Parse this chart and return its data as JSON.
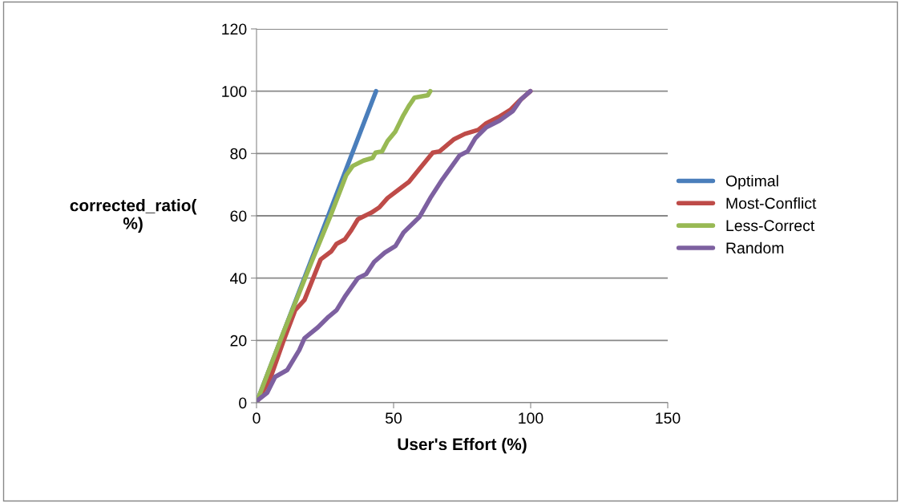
{
  "chart_data": {
    "type": "line",
    "xlabel": "User's Effort (%)",
    "ylabel": "corrected_ratio(\n%)",
    "xlim": [
      0,
      150
    ],
    "xticks": [
      0,
      50,
      100,
      150
    ],
    "ylim": [
      0,
      120
    ],
    "yticks": [
      0,
      20,
      40,
      60,
      80,
      100,
      120
    ],
    "grid": "y",
    "legend": "right",
    "marker": "none",
    "line_style": "solid",
    "series": [
      {
        "name": "Optimal",
        "color": "#4a7ebb",
        "x": [
          0,
          43.6
        ],
        "values": [
          0,
          100
        ]
      },
      {
        "name": "Most-Conflict",
        "color": "#be4b48",
        "x": [
          0,
          4.9,
          9.7,
          14.1,
          17.5,
          23.4,
          27.3,
          29.2,
          32.2,
          34.6,
          37,
          41.9,
          44.8,
          47.8,
          51.7,
          55.6,
          59.5,
          64.3,
          66.8,
          72.1,
          76,
          80.9,
          83.8,
          88.7,
          92.6,
          95.5,
          99.9
        ],
        "values": [
          0,
          7.5,
          19.5,
          29.7,
          33,
          46,
          48.6,
          51,
          52.4,
          55.4,
          58.9,
          61,
          62.7,
          65.7,
          68.3,
          70.9,
          75.1,
          80.3,
          80.7,
          84.6,
          86.3,
          87.6,
          89.7,
          91.9,
          94,
          96.6,
          100
        ]
      },
      {
        "name": "Less-Correct",
        "color": "#98b954",
        "x": [
          0,
          10,
          20,
          27,
          32.7,
          35.1,
          39,
          42.4,
          43.4,
          45.8,
          47.8,
          50.6,
          53.6,
          55.6,
          57.6,
          62.5,
          63.4
        ],
        "values": [
          0,
          23,
          45,
          60,
          73,
          76,
          77.7,
          78.6,
          80.3,
          80.7,
          84,
          87,
          92.3,
          95.3,
          97.9,
          98.7,
          100
        ]
      },
      {
        "name": "Random",
        "color": "#7d60a0",
        "x": [
          0,
          3.9,
          6.8,
          11.2,
          15.6,
          17.5,
          22.4,
          26.3,
          29.2,
          32.2,
          37,
          40,
          42.9,
          46.8,
          50.7,
          53.6,
          59.5,
          63.4,
          67.8,
          74.1,
          77,
          79.9,
          83.8,
          88.7,
          93.5,
          96.5,
          99.9
        ],
        "values": [
          0.5,
          3.2,
          8.3,
          10.5,
          16.9,
          20.7,
          24.2,
          27.6,
          29.7,
          34,
          40,
          41.3,
          45.2,
          48.2,
          50.3,
          54.6,
          59.7,
          65.7,
          71.7,
          79.4,
          80.7,
          85,
          88.4,
          90.6,
          93.6,
          97.4,
          100
        ]
      }
    ]
  }
}
